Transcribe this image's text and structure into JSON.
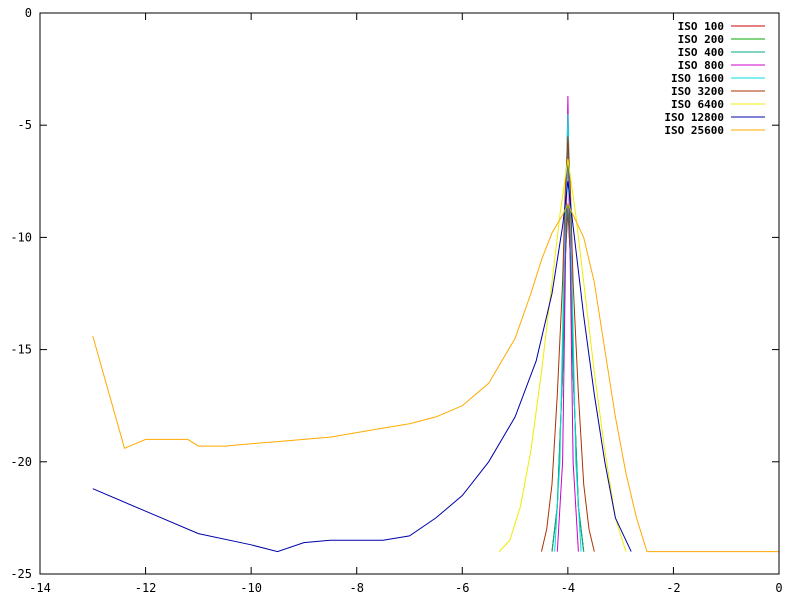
{
  "chart_data": {
    "type": "line",
    "title": "",
    "xlabel": "",
    "ylabel": "",
    "xlim": [
      -14,
      0
    ],
    "ylim": [
      -25,
      0
    ],
    "grid": false,
    "legend_position": "top-right",
    "x_ticks": [
      "-14",
      "-12",
      "-10",
      "-8",
      "-6",
      "-4",
      "-2",
      "0"
    ],
    "x_tick_values": [
      -14,
      -12,
      -10,
      -8,
      -6,
      -4,
      -2,
      0
    ],
    "y_ticks": [
      "0",
      "-5",
      "-10",
      "-15",
      "-20",
      "-25"
    ],
    "y_tick_values": [
      0,
      -5,
      -10,
      -15,
      -20,
      -25
    ],
    "series": [
      {
        "name": "ISO 100",
        "color": "#cc0000",
        "x": [
          -4.3,
          -4.2,
          -4.1,
          -4.05,
          -4.0,
          -3.95,
          -3.9,
          -3.8,
          -3.7
        ],
        "y": [
          -24,
          -22,
          -16,
          -11,
          -8.8,
          -11,
          -16,
          -22,
          -24
        ]
      },
      {
        "name": "ISO 200",
        "color": "#00aa00",
        "x": [
          -4.3,
          -4.2,
          -4.1,
          -4.05,
          -4.0,
          -3.95,
          -3.9,
          -3.8,
          -3.7
        ],
        "y": [
          -24,
          -22,
          -16,
          -11,
          -8.5,
          -11,
          -16,
          -22,
          -24
        ]
      },
      {
        "name": "ISO 400",
        "color": "#00aa88",
        "x": [
          -4.3,
          -4.2,
          -4.1,
          -4.05,
          -4.0,
          -3.95,
          -3.9,
          -3.8,
          -3.7
        ],
        "y": [
          -24,
          -22,
          -16,
          -11,
          -6.0,
          -11,
          -16,
          -22,
          -24
        ]
      },
      {
        "name": "ISO 800",
        "color": "#cc00cc",
        "x": [
          -4.2,
          -4.1,
          -4.05,
          -4.0,
          -3.95,
          -3.9,
          -3.8
        ],
        "y": [
          -24,
          -20,
          -12,
          -3.7,
          -12,
          -20,
          -24
        ]
      },
      {
        "name": "ISO 1600",
        "color": "#00dddd",
        "x": [
          -4.25,
          -4.15,
          -4.08,
          -4.0,
          -3.92,
          -3.85,
          -3.75
        ],
        "y": [
          -24,
          -20,
          -12,
          -4.5,
          -12,
          -20,
          -24
        ]
      },
      {
        "name": "ISO 3200",
        "color": "#aa3300",
        "x": [
          -4.5,
          -4.4,
          -4.3,
          -4.2,
          -4.1,
          -4.05,
          -4.0,
          -3.95,
          -3.9,
          -3.8,
          -3.7,
          -3.6,
          -3.5
        ],
        "y": [
          -24,
          -23,
          -21,
          -17,
          -12,
          -8,
          -5.5,
          -8,
          -12,
          -17,
          -21,
          -23,
          -24
        ]
      },
      {
        "name": "ISO 6400",
        "color": "#eeee00",
        "x": [
          -5.3,
          -5.1,
          -4.9,
          -4.7,
          -4.5,
          -4.3,
          -4.15,
          -4.0,
          -3.85,
          -3.7,
          -3.5,
          -3.3,
          -3.1,
          -2.9
        ],
        "y": [
          -24,
          -23.5,
          -22,
          -19.5,
          -16,
          -12,
          -9,
          -6.5,
          -9,
          -12,
          -16,
          -19.5,
          -22.5,
          -24
        ]
      },
      {
        "name": "ISO 12800",
        "color": "#0000aa",
        "x": [
          -13,
          -12,
          -11,
          -10,
          -9.5,
          -9,
          -8.5,
          -8,
          -7.5,
          -7,
          -6.5,
          -6,
          -5.5,
          -5,
          -4.6,
          -4.3,
          -4.1,
          -4.0,
          -3.9,
          -3.7,
          -3.5,
          -3.3,
          -3.1,
          -2.9,
          -2.8
        ],
        "y": [
          -21.2,
          -22.2,
          -23.2,
          -23.7,
          -24,
          -23.6,
          -23.5,
          -23.5,
          -23.5,
          -23.3,
          -22.5,
          -21.5,
          -20.0,
          -18.0,
          -15.5,
          -12.5,
          -9.5,
          -7.5,
          -9.5,
          -13.5,
          -17.0,
          -20.0,
          -22.5,
          -23.5,
          -24
        ]
      },
      {
        "name": "ISO 25600",
        "color": "#ffaa00",
        "x": [
          -13,
          -12.4,
          -12,
          -11.2,
          -11,
          -10.5,
          -10,
          -9.5,
          -9,
          -8.5,
          -8,
          -7.5,
          -7,
          -6.5,
          -6,
          -5.5,
          -5,
          -4.7,
          -4.5,
          -4.3,
          -4.1,
          -4.0,
          -3.9,
          -3.7,
          -3.5,
          -3.3,
          -3.1,
          -2.9,
          -2.7,
          -2.5,
          -2.4,
          -2.0,
          -1.0,
          0
        ],
        "y": [
          -14.4,
          -19.4,
          -19,
          -19,
          -19.3,
          -19.3,
          -19.2,
          -19.1,
          -19.0,
          -18.9,
          -18.7,
          -18.5,
          -18.3,
          -18.0,
          -17.5,
          -16.5,
          -14.5,
          -12.5,
          -11,
          -9.8,
          -9.0,
          -8.5,
          -9.0,
          -10.0,
          -12.0,
          -15.0,
          -18.0,
          -20.5,
          -22.5,
          -24,
          -24,
          -24,
          -24,
          -24
        ]
      }
    ]
  }
}
